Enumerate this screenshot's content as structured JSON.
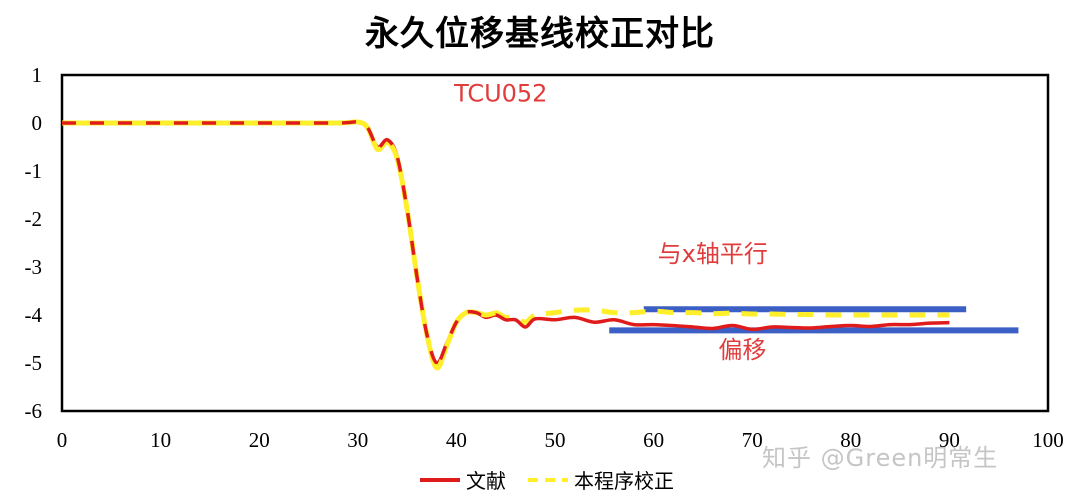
{
  "chart_data": {
    "type": "line",
    "title": "永久位移基线校正对比",
    "xlabel": "",
    "ylabel": "",
    "xlim": [
      0,
      100
    ],
    "ylim": [
      -6,
      1
    ],
    "x_ticks": [
      0,
      10,
      20,
      30,
      40,
      50,
      60,
      70,
      80,
      90,
      100
    ],
    "y_ticks": [
      1,
      0,
      -1,
      -2,
      -3,
      -4,
      -5,
      -6
    ],
    "grid": false,
    "legend_position": "bottom",
    "series": [
      {
        "name": "文献",
        "color": "#e01b1b",
        "style": "solid",
        "x": [
          0,
          10,
          20,
          28,
          30,
          31,
          32,
          33,
          34,
          35,
          36,
          37,
          38,
          39,
          40,
          41,
          42,
          43,
          44,
          45,
          46,
          47,
          48,
          50,
          52,
          54,
          56,
          58,
          60,
          62,
          64,
          66,
          68,
          70,
          72,
          74,
          76,
          78,
          80,
          82,
          84,
          86,
          88,
          90
        ],
        "y": [
          0,
          0,
          0,
          0,
          0.02,
          -0.1,
          -0.5,
          -0.35,
          -0.7,
          -1.8,
          -3.2,
          -4.4,
          -5.0,
          -4.6,
          -4.15,
          -3.95,
          -3.95,
          -4.05,
          -4.0,
          -4.1,
          -4.1,
          -4.25,
          -4.08,
          -4.1,
          -4.05,
          -4.15,
          -4.1,
          -4.2,
          -4.2,
          -4.22,
          -4.25,
          -4.28,
          -4.22,
          -4.3,
          -4.25,
          -4.26,
          -4.27,
          -4.24,
          -4.22,
          -4.24,
          -4.2,
          -4.2,
          -4.17,
          -4.16
        ]
      },
      {
        "name": "本程序校正",
        "color": "#ffef2a",
        "style": "dashed",
        "x": [
          0,
          10,
          20,
          28,
          30,
          31,
          32,
          33,
          34,
          35,
          36,
          37,
          38,
          39,
          40,
          41,
          42,
          43,
          44,
          45,
          46,
          47,
          48,
          50,
          52,
          54,
          56,
          58,
          60,
          62,
          64,
          66,
          68,
          70,
          72,
          74,
          76,
          78,
          80,
          82,
          84,
          86,
          88,
          90
        ],
        "y": [
          0,
          0,
          0,
          0,
          0.02,
          -0.1,
          -0.55,
          -0.4,
          -0.75,
          -1.8,
          -3.2,
          -4.4,
          -5.1,
          -4.65,
          -4.15,
          -3.95,
          -3.95,
          -4.0,
          -3.95,
          -4.05,
          -4.05,
          -4.15,
          -4.0,
          -3.95,
          -3.9,
          -3.9,
          -3.95,
          -3.95,
          -3.92,
          -3.95,
          -3.95,
          -3.97,
          -3.96,
          -3.98,
          -3.98,
          -3.99,
          -3.99,
          -4.0,
          -4.0,
          -4.0,
          -4.0,
          -4.0,
          -4.0,
          -4.0
        ]
      }
    ],
    "annotations": [
      {
        "text": "TCU052",
        "color": "#e03c3c",
        "x": 44.5,
        "y": 0.45
      },
      {
        "text": "与x轴平行",
        "color": "#e03c3c",
        "x": 66,
        "y": -2.9
      },
      {
        "text": "偏移",
        "color": "#e03c3c",
        "x": 69,
        "y": -4.9
      },
      {
        "type": "hline",
        "color": "#3b5fc4",
        "x_start": 59,
        "x_end": 91.7,
        "y": -3.88,
        "label": "与x轴平行"
      },
      {
        "type": "hline",
        "color": "#3b5fc4",
        "x_start": 55.5,
        "x_end": 97,
        "y": -4.32,
        "label": "偏移"
      }
    ]
  },
  "legend": {
    "items": [
      {
        "label": "文献",
        "color": "#e01b1b"
      },
      {
        "label": "本程序校正",
        "color": "#ffef2a"
      }
    ]
  },
  "watermark": "知乎 @Green明常生"
}
